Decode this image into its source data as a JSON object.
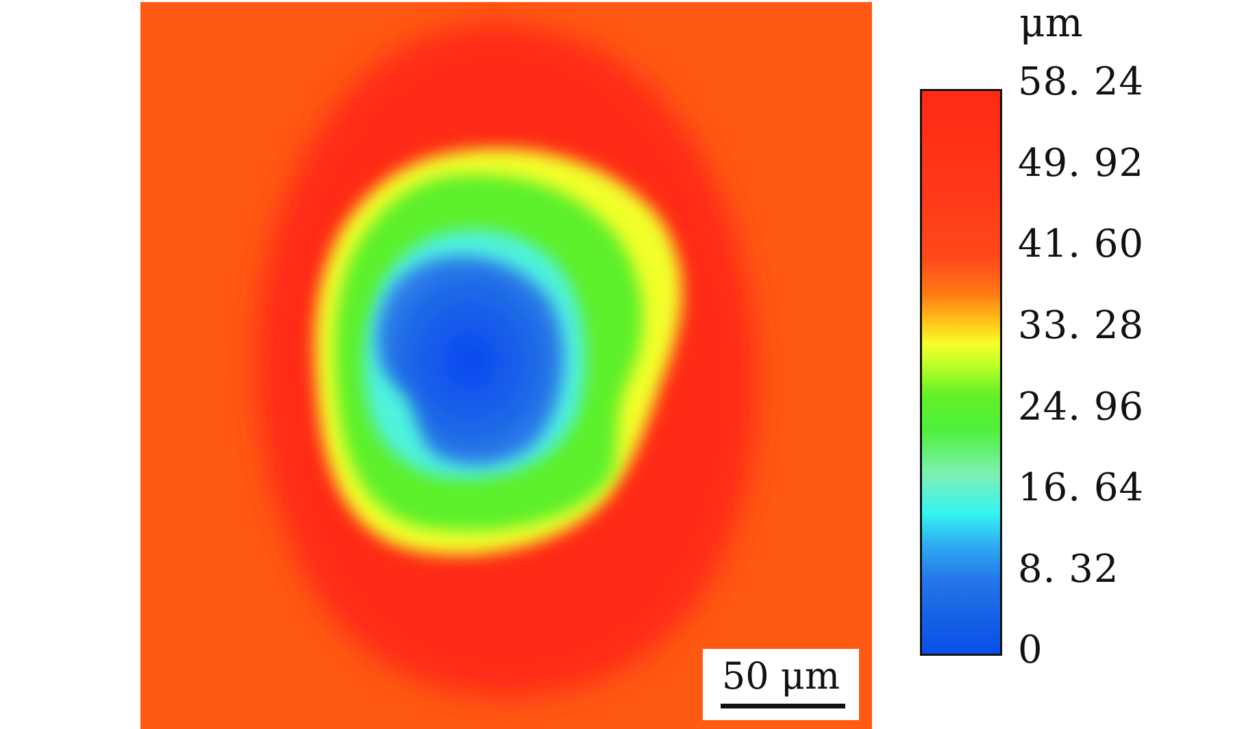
{
  "scale_bar": {
    "label": "50 μm"
  },
  "colorbar": {
    "unit": "μm",
    "ticks": [
      "58. 24",
      "49. 92",
      "41. 60",
      "33. 28",
      "24. 96",
      "16. 64",
      "8. 32",
      "0"
    ]
  },
  "colors": {
    "background_orange": "#ff5a14",
    "rim_red": "#ff2a10",
    "ring_yellow": "#f4ff2c",
    "ring_green": "#5ff028",
    "ring_cyan": "#52f2dc",
    "core_blue": "#0a4ef0"
  }
}
